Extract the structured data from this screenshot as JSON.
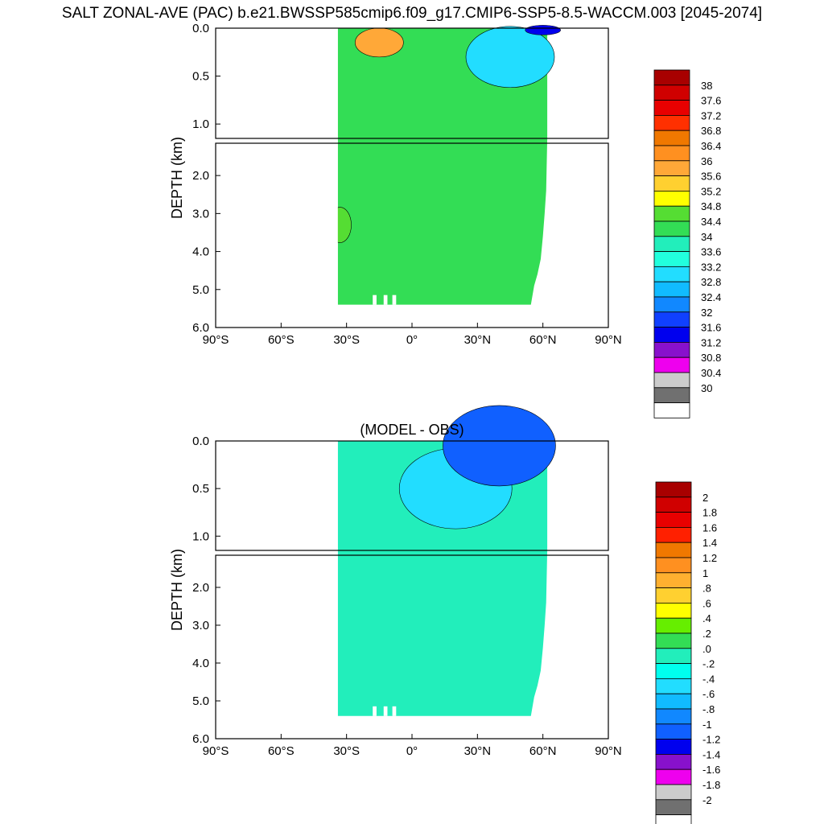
{
  "title": "SALT ZONAL-AVE (PAC) b.e21.BWSSP585cmip6.f09_g17.CMIP6-SSP5-8.5-WACCM.003 [2045-2074]",
  "chart_data": [
    {
      "type": "contour",
      "title": "",
      "ylabel": "DEPTH (km)",
      "xlabel": "",
      "x_ticks": [
        "90°S",
        "60°S",
        "30°S",
        "0°",
        "30°N",
        "60°N",
        "90°N"
      ],
      "xlim": [
        -90,
        90
      ],
      "ylim": [
        6.0,
        0.0
      ],
      "y_ticks_upper": [
        "0.0",
        "0.5",
        "1.0"
      ],
      "y_ticks_lower": [
        "2.0",
        "3.0",
        "4.0",
        "5.0",
        "6.0"
      ],
      "field": "salinity",
      "domain_lat_range": [
        -34,
        62
      ],
      "max_depth_km": 5.4,
      "background_value": 34.6,
      "features": [
        {
          "name": "high-salinity core",
          "lat": -15,
          "depth_km": 0.15,
          "value": 36.0
        },
        {
          "name": "deep high-salinity patch",
          "lat": -33,
          "depth_km": 3.3,
          "value": 35.0
        },
        {
          "name": "low-salinity north pacific surface",
          "lat": 45,
          "depth_km": 0.3,
          "value": 33.4
        },
        {
          "name": "freshest surface water",
          "lat": 60,
          "depth_km": 0.02,
          "value": 31.8
        }
      ],
      "colorbar": {
        "labels": [
          "38",
          "37.6",
          "37.2",
          "36.8",
          "36.4",
          "36",
          "35.6",
          "35.2",
          "34.8",
          "34.4",
          "34",
          "33.6",
          "33.2",
          "32.8",
          "32.4",
          "32",
          "31.6",
          "31.2",
          "30.8",
          "30.4",
          "30"
        ],
        "colors": [
          "#a80000",
          "#d00000",
          "#e80000",
          "#ff3000",
          "#f07800",
          "#ff9020",
          "#ffa838",
          "#ffd030",
          "#ffff00",
          "#55dd33",
          "#33dd55",
          "#22eebb",
          "#22ffdd",
          "#22ddff",
          "#11bbff",
          "#1188ff",
          "#1040ff",
          "#0000ee",
          "#8811cc",
          "#ee00ee",
          "#cccccc",
          "#707070",
          "#ffffff"
        ]
      }
    },
    {
      "type": "contour",
      "title": "(MODEL - OBS)",
      "ylabel": "DEPTH (km)",
      "xlabel": "",
      "x_ticks": [
        "90°S",
        "60°S",
        "30°S",
        "0°",
        "30°N",
        "60°N",
        "90°N"
      ],
      "xlim": [
        -90,
        90
      ],
      "ylim": [
        6.0,
        0.0
      ],
      "y_ticks_upper": [
        "0.0",
        "0.5",
        "1.0"
      ],
      "y_ticks_lower": [
        "2.0",
        "3.0",
        "4.0",
        "5.0",
        "6.0"
      ],
      "field": "salinity difference",
      "domain_lat_range": [
        -34,
        62
      ],
      "max_depth_km": 5.4,
      "background_value": 0.1,
      "features": [
        {
          "name": "fresh bias upper ocean",
          "lat": 20,
          "depth_km": 0.5,
          "value": -0.3
        },
        {
          "name": "strong fresh bias surface",
          "lat": 40,
          "depth_km": 0.05,
          "value": -1.0
        }
      ],
      "colorbar": {
        "labels": [
          "2",
          "1.8",
          "1.6",
          "1.4",
          "1.2",
          "1",
          ".8",
          ".6",
          ".4",
          ".2",
          ".0",
          "-.2",
          "-.4",
          "-.6",
          "-.8",
          "-1",
          "-1.2",
          "-1.4",
          "-1.6",
          "-1.8",
          "-2"
        ],
        "colors": [
          "#a80000",
          "#d00000",
          "#e80000",
          "#ff2000",
          "#f07800",
          "#ff9020",
          "#ffb030",
          "#ffd030",
          "#ffff00",
          "#66ee00",
          "#33dd55",
          "#22eebb",
          "#00ffee",
          "#22ddff",
          "#11bbff",
          "#1188ff",
          "#1060ff",
          "#0000ee",
          "#8811cc",
          "#ee00ee",
          "#cccccc",
          "#707070",
          "#ffffff"
        ]
      }
    }
  ]
}
